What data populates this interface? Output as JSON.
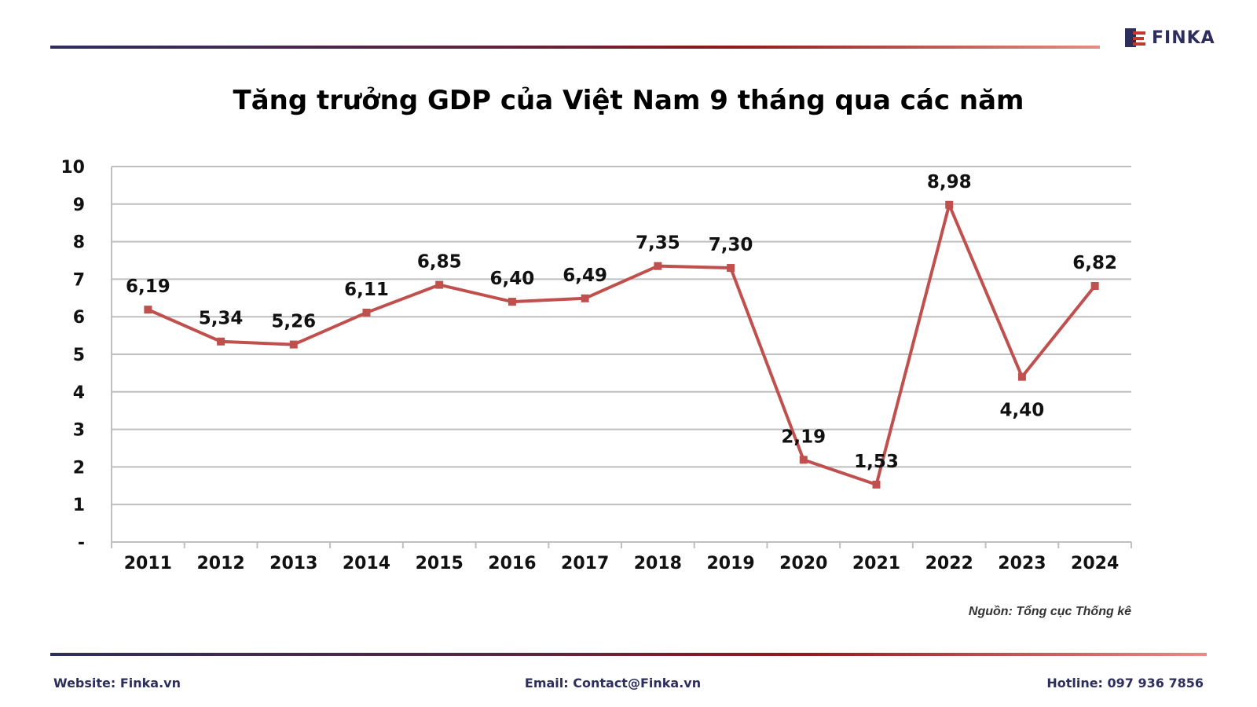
{
  "brand": {
    "name": "FINKA",
    "icon": "finka-logo-icon"
  },
  "title": "Tăng trưởng GDP của Việt Nam 9 tháng qua các năm",
  "source": "Nguồn: Tổng cục Thống kê",
  "footer": {
    "website": "Website: Finka.vn",
    "email": "Email: Contact@Finka.vn",
    "hotline": "Hotline: 097 936 7856"
  },
  "colors": {
    "line": "#c0504d",
    "grid": "#bfbfbf",
    "brand": "#2e2e5c",
    "accent": "#c0392b"
  },
  "chart_data": {
    "type": "line",
    "title": "Tăng trưởng GDP của Việt Nam 9 tháng qua các năm",
    "categories": [
      "2011",
      "2012",
      "2013",
      "2014",
      "2015",
      "2016",
      "2017",
      "2018",
      "2019",
      "2020",
      "2021",
      "2022",
      "2023",
      "2024"
    ],
    "values": [
      6.19,
      5.34,
      5.26,
      6.11,
      6.85,
      6.4,
      6.49,
      7.35,
      7.3,
      2.19,
      1.53,
      8.98,
      4.4,
      6.82
    ],
    "data_labels": [
      "6,19",
      "5,34",
      "5,26",
      "6,11",
      "6,85",
      "6,40",
      "6,49",
      "7,35",
      "7,30",
      "2,19",
      "1,53",
      "8,98",
      "4,40",
      "6,82"
    ],
    "y_ticks": [
      "-",
      "1",
      "2",
      "3",
      "4",
      "5",
      "6",
      "7",
      "8",
      "9",
      "10"
    ],
    "ylim": [
      0,
      10
    ],
    "xlabel": "",
    "ylabel": "",
    "grid": true,
    "legend": "none"
  }
}
